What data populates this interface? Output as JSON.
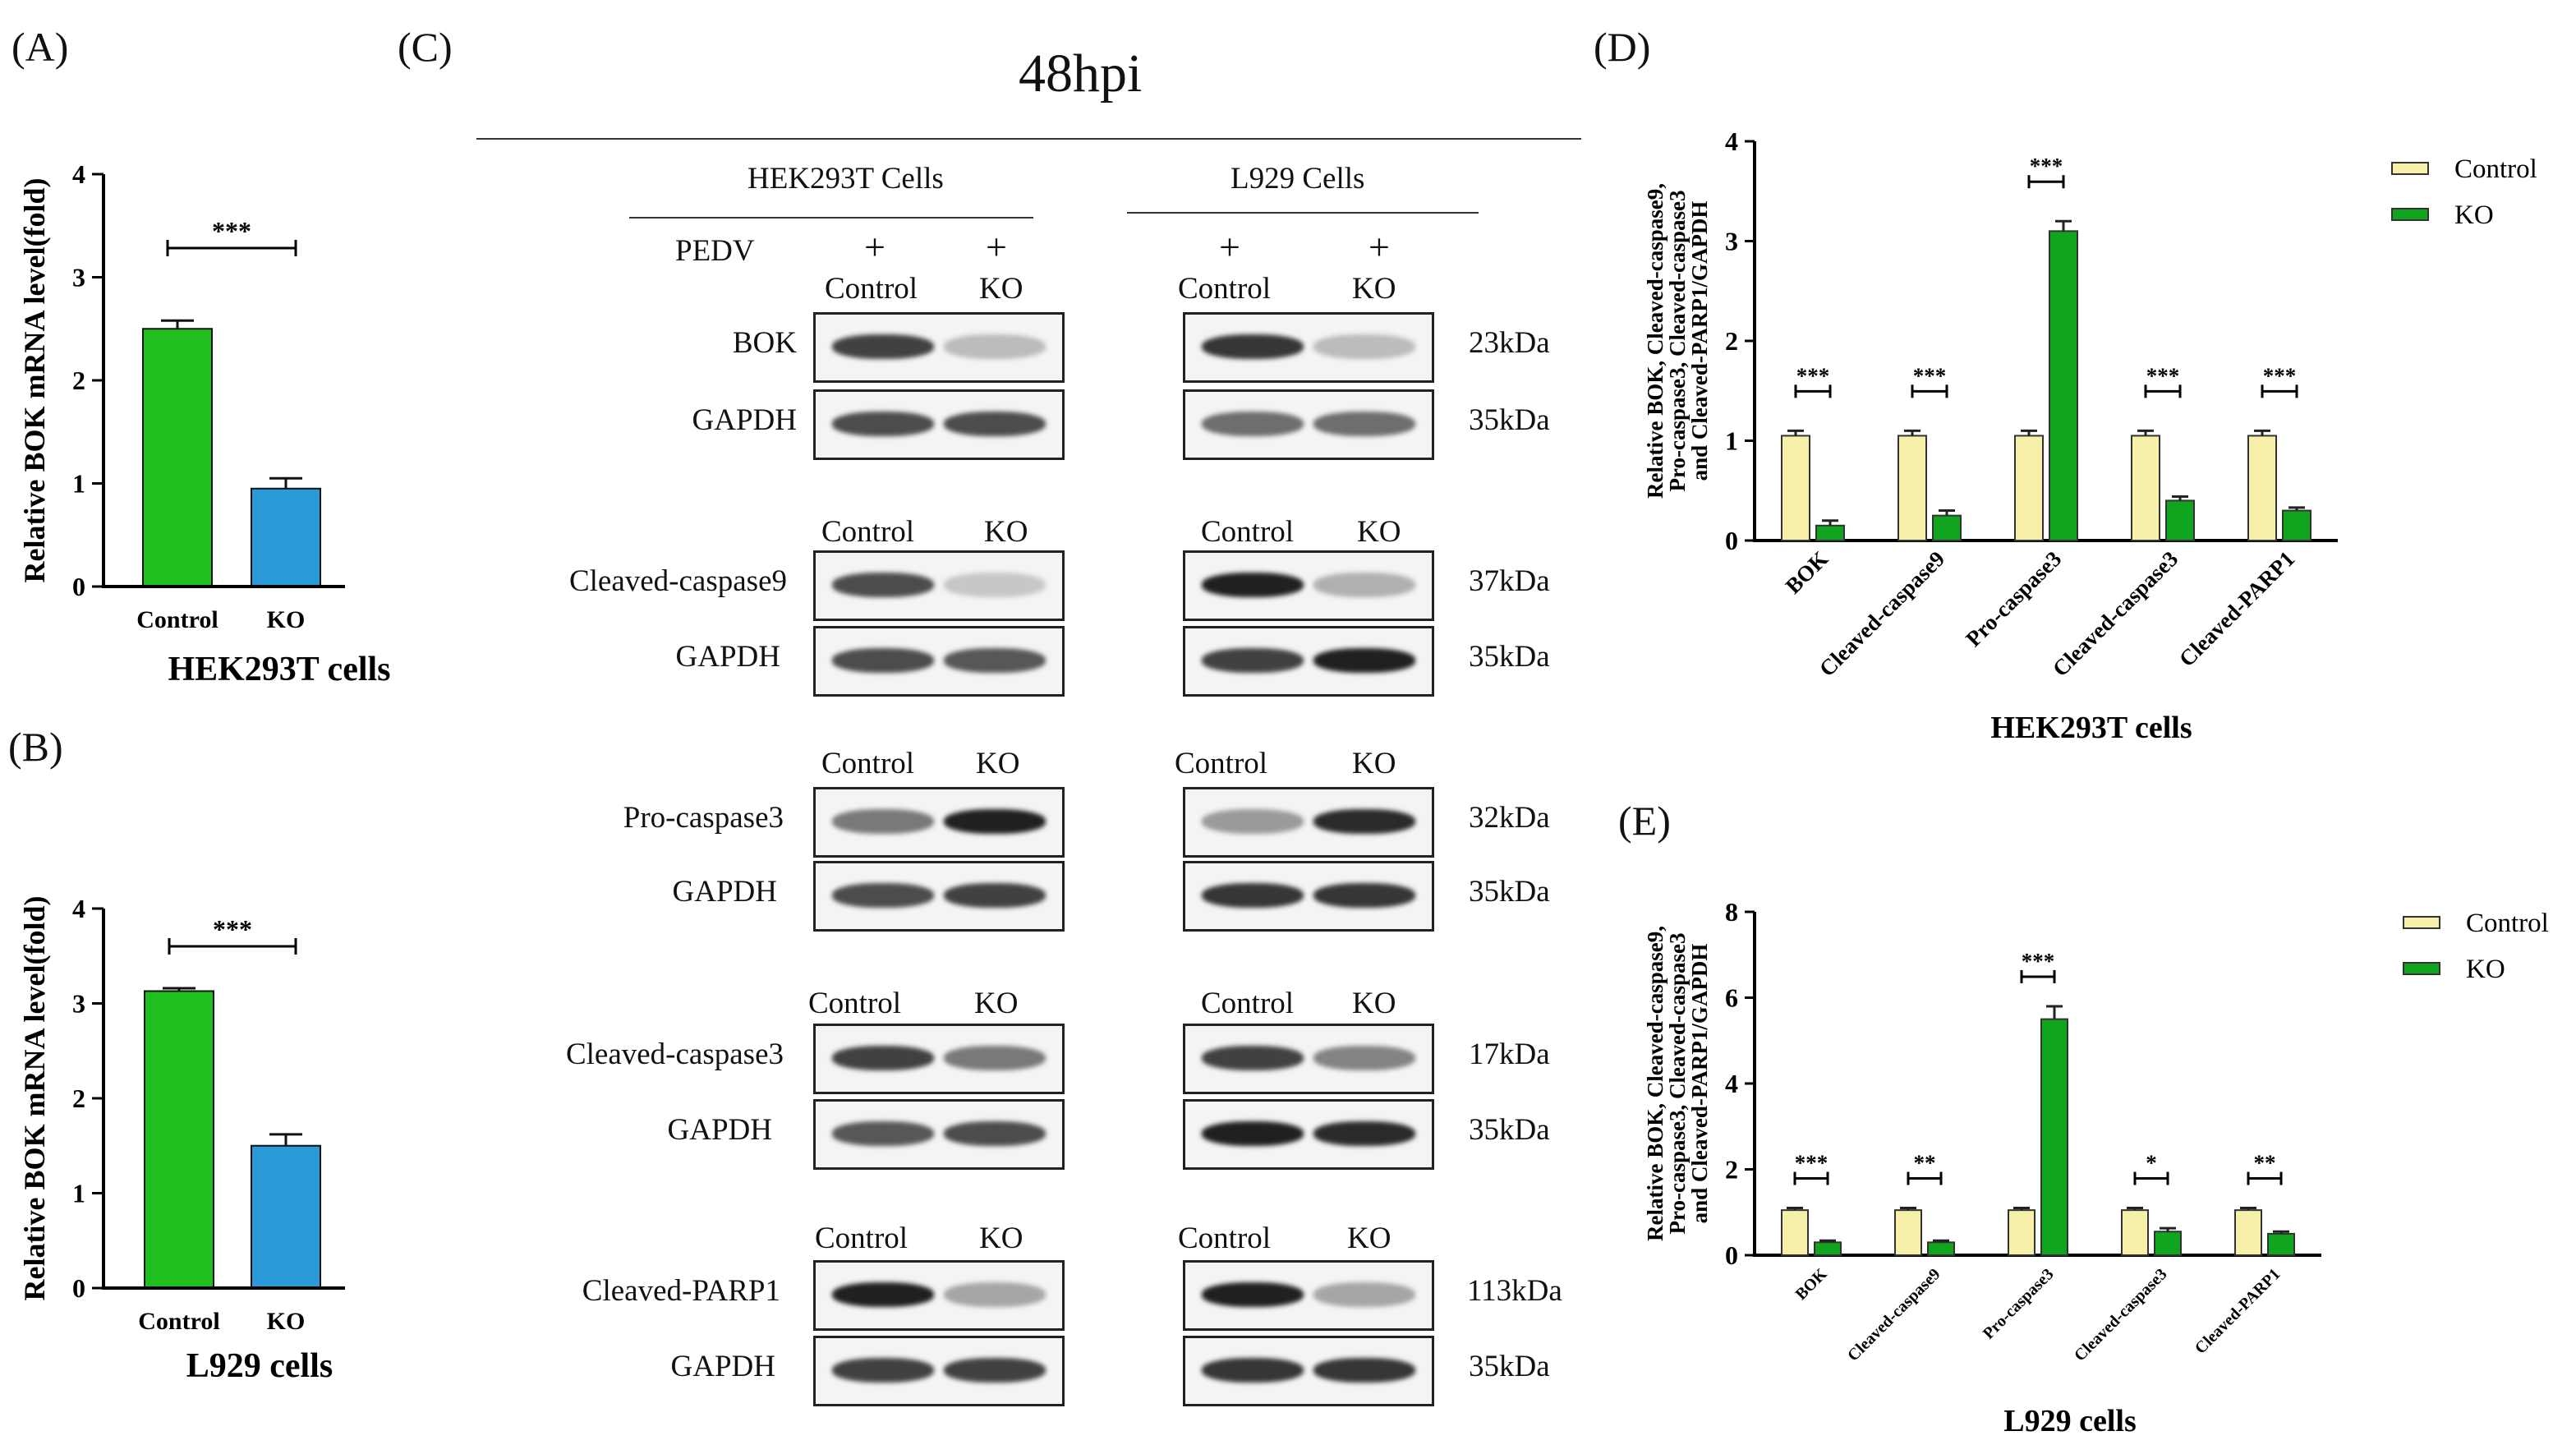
{
  "panels": {
    "A": {
      "letter": "(A)"
    },
    "B": {
      "letter": "(B)"
    },
    "C": {
      "letter": "(C)",
      "title": "48hpi",
      "left_header": "HEK293T  Cells",
      "right_header": "L929 Cells",
      "pedv_label": "PEDV",
      "plus": "+",
      "control": "Control",
      "ko": "KO",
      "rows": [
        {
          "label": "BOK",
          "kda": "23kDa"
        },
        {
          "label": "GAPDH",
          "kda": "35kDa"
        },
        {
          "label": "Cleaved-caspase9",
          "kda": "37kDa"
        },
        {
          "label": "GAPDH",
          "kda": "35kDa"
        },
        {
          "label": "Pro-caspase3",
          "kda": "32kDa"
        },
        {
          "label": "GAPDH",
          "kda": "35kDa"
        },
        {
          "label": "Cleaved-caspase3",
          "kda": "17kDa"
        },
        {
          "label": "GAPDH",
          "kda": "35kDa"
        },
        {
          "label": "Cleaved-PARP1",
          "kda": "113kDa"
        },
        {
          "label": "GAPDH",
          "kda": "35kDa"
        }
      ]
    },
    "D": {
      "letter": "(D)"
    },
    "E": {
      "letter": "(E)"
    }
  },
  "colors": {
    "control_green": "#1fbf1f",
    "ko_blue": "#2a9ad8",
    "ctrl_yellow": "#f7f0a8",
    "ko_green": "#11a51f"
  },
  "chart_data": [
    {
      "id": "A",
      "type": "bar",
      "categories": [
        "Control",
        "KO"
      ],
      "values": [
        2.5,
        0.95
      ],
      "errors": [
        0.08,
        0.1
      ],
      "xlabel": "HEK293T cells",
      "ylabel": "Relative BOK mRNA level(fold)",
      "ylim": [
        0,
        4
      ],
      "yticks": [
        "0",
        "1",
        "2",
        "3",
        "4"
      ],
      "significance": "***"
    },
    {
      "id": "B",
      "type": "bar",
      "categories": [
        "Control",
        "KO"
      ],
      "values": [
        3.13,
        1.5
      ],
      "errors": [
        0.03,
        0.12
      ],
      "xlabel": "L929 cells",
      "ylabel": "Relative BOK mRNA level(fold)",
      "ylim": [
        0,
        4
      ],
      "yticks": [
        "0",
        "1",
        "2",
        "3",
        "4"
      ],
      "significance": "***"
    },
    {
      "id": "D",
      "type": "bar",
      "categories": [
        "BOK",
        "Cleaved-caspase9",
        "Pro-caspase3",
        "Cleaved-caspase3",
        "Cleaved-PARP1"
      ],
      "series": [
        {
          "name": "Control",
          "values": [
            1.05,
            1.05,
            1.05,
            1.05,
            1.05
          ],
          "errors": [
            0.05,
            0.05,
            0.05,
            0.05,
            0.05
          ]
        },
        {
          "name": "KO",
          "values": [
            0.15,
            0.25,
            3.1,
            0.4,
            0.3
          ],
          "errors": [
            0.05,
            0.05,
            0.1,
            0.04,
            0.03
          ]
        }
      ],
      "significance": [
        "***",
        "***",
        "***",
        "***",
        "***"
      ],
      "xlabel": "HEK293T cells",
      "ylabel_lines": [
        "Relative BOK, Cleaved-caspase9,",
        "Pro-caspase3, Cleaved-caspase3",
        "and Cleaved-PARP1/GAPDH"
      ],
      "ylim": [
        0,
        4
      ],
      "yticks": [
        "0",
        "1",
        "2",
        "3",
        "4"
      ],
      "legend": "top-right"
    },
    {
      "id": "E",
      "type": "bar",
      "categories": [
        "BOK",
        "Cleaved-caspase9",
        "Pro-caspase3",
        "Cleaved-caspase3",
        "Cleaved-PARP1"
      ],
      "series": [
        {
          "name": "Control",
          "values": [
            1.05,
            1.05,
            1.05,
            1.05,
            1.05
          ],
          "errors": [
            0.05,
            0.05,
            0.05,
            0.05,
            0.05
          ]
        },
        {
          "name": "KO",
          "values": [
            0.3,
            0.3,
            5.5,
            0.55,
            0.5
          ],
          "errors": [
            0.04,
            0.04,
            0.3,
            0.08,
            0.05
          ]
        }
      ],
      "significance": [
        "***",
        "**",
        "***",
        "*",
        "**"
      ],
      "xlabel": "L929 cells",
      "ylabel_lines": [
        "Relative BOK, Cleaved-caspase9,",
        "Pro-caspase3, Cleaved-caspase3",
        "and Cleaved-PARP1/GAPDH"
      ],
      "ylim": [
        0,
        8
      ],
      "yticks": [
        "0",
        "2",
        "4",
        "6",
        "8"
      ],
      "legend": "top-right"
    }
  ]
}
